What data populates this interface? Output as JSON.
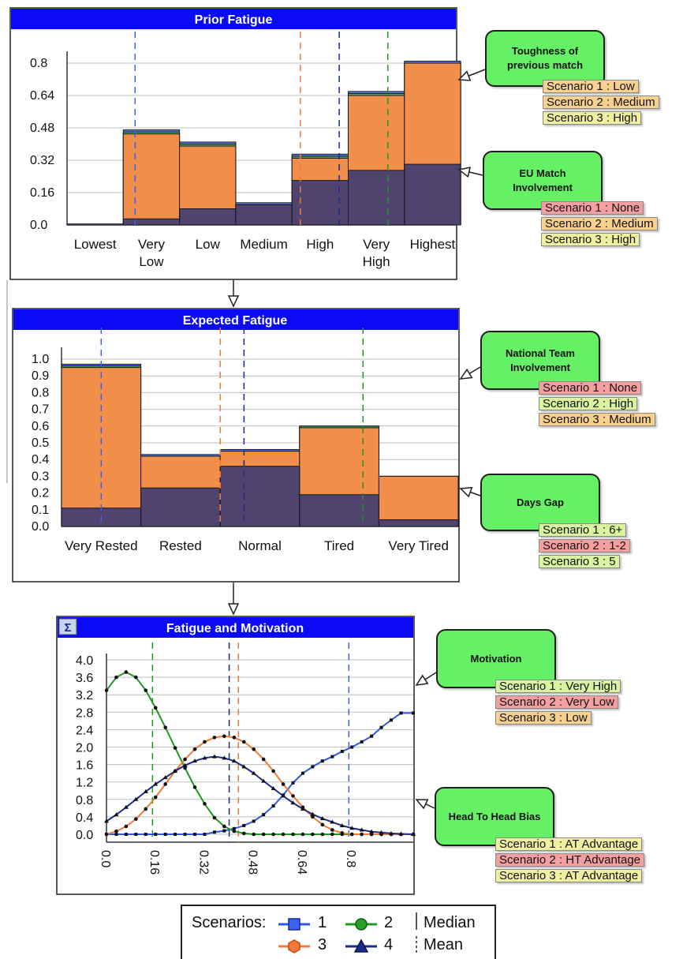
{
  "prior_fatigue": {
    "title": "Prior Fatigue",
    "chart_data": {
      "type": "bar",
      "title": "Prior Fatigue",
      "categories": [
        "Lowest",
        "Very Low",
        "Low",
        "Medium",
        "High",
        "Very High",
        "Highest"
      ],
      "tick_labels": [
        "0.0",
        "0.16",
        "0.32",
        "0.48",
        "0.64",
        "0.8"
      ],
      "ylim": [
        0,
        0.8
      ],
      "series": [
        {
          "values": [
            0.005,
            0.47,
            0.41,
            0.11,
            0.35,
            0.66,
            0.81
          ],
          "color": "#5b7bf0"
        },
        {
          "values": [
            0.0,
            0.46,
            0.4,
            0.1,
            0.34,
            0.65,
            0.8
          ],
          "color": "#45a845"
        },
        {
          "values": [
            0.0,
            0.45,
            0.39,
            0.1,
            0.33,
            0.64,
            0.8
          ],
          "color": "#ff8c4a"
        },
        {
          "values": [
            0.0,
            0.03,
            0.08,
            0.1,
            0.22,
            0.27,
            0.3
          ],
          "color": "#232e78"
        }
      ],
      "mean_lines": [
        0.175,
        0.6,
        0.7,
        0.825
      ]
    }
  },
  "expected_fatigue": {
    "title": "Expected Fatigue",
    "chart_data": {
      "type": "bar",
      "title": "Expected Fatigue",
      "categories": [
        "Very Rested",
        "Rested",
        "Normal",
        "Tired",
        "Very Tired"
      ],
      "tick_labels": [
        "0.0",
        "0.1",
        "0.2",
        "0.3",
        "0.4",
        "0.5",
        "0.6",
        "0.7",
        "0.8",
        "0.9",
        "1.0"
      ],
      "ylim": [
        0,
        1.0
      ],
      "series": [
        {
          "values": [
            0.97,
            0.43,
            0.46,
            0.6,
            0.3
          ],
          "color": "#5b7bf0"
        },
        {
          "values": [
            0.96,
            0.42,
            0.45,
            0.6,
            0.3
          ],
          "color": "#45a845"
        },
        {
          "values": [
            0.95,
            0.42,
            0.45,
            0.59,
            0.3
          ],
          "color": "#ff8c4a"
        },
        {
          "values": [
            0.11,
            0.23,
            0.36,
            0.19,
            0.04
          ],
          "color": "#232e78"
        }
      ],
      "mean_lines": [
        0.1,
        0.4,
        0.46,
        0.76
      ]
    }
  },
  "fatigue_motivation": {
    "title": "Fatigue and Motivation",
    "sigma_label": "Σ",
    "chart_data": {
      "type": "line",
      "title": "Fatigue and Motivation",
      "x": [
        0.0,
        0.032,
        0.064,
        0.096,
        0.128,
        0.16,
        0.192,
        0.224,
        0.256,
        0.288,
        0.32,
        0.352,
        0.384,
        0.416,
        0.448,
        0.48,
        0.512,
        0.544,
        0.576,
        0.608,
        0.64,
        0.672,
        0.704,
        0.736,
        0.768,
        0.8,
        0.832,
        0.864,
        0.896,
        0.928,
        0.96,
        1.0
      ],
      "series": [
        {
          "name": "1",
          "color": "#2f57e8",
          "marker": "square",
          "values": [
            0.0,
            0.0,
            0.0,
            0.0,
            0.0,
            0.0,
            0.0,
            0.0,
            0.0,
            0.0,
            0.0,
            0.05,
            0.08,
            0.13,
            0.2,
            0.3,
            0.45,
            0.65,
            0.9,
            1.18,
            1.4,
            1.55,
            1.68,
            1.78,
            1.9,
            2.0,
            2.12,
            2.25,
            2.45,
            2.62,
            2.78,
            2.78
          ]
        },
        {
          "name": "2",
          "color": "#1f9a1f",
          "marker": "circle",
          "values": [
            3.3,
            3.6,
            3.72,
            3.6,
            3.3,
            2.9,
            2.45,
            1.98,
            1.52,
            1.08,
            0.7,
            0.38,
            0.18,
            0.07,
            0.02,
            0.0,
            0.0,
            0.0,
            0.0,
            0.0,
            0.0,
            0.0,
            0.0,
            0.0,
            0.0,
            0.0,
            0.0,
            0.0,
            0.0,
            0.0,
            0.0,
            0.0
          ]
        },
        {
          "name": "3",
          "color": "#f07a3a",
          "marker": "hexagon",
          "values": [
            0.0,
            0.07,
            0.18,
            0.35,
            0.58,
            0.85,
            1.15,
            1.45,
            1.72,
            1.95,
            2.12,
            2.22,
            2.25,
            2.22,
            2.12,
            1.95,
            1.72,
            1.45,
            1.15,
            0.88,
            0.62,
            0.4,
            0.22,
            0.1,
            0.03,
            0.0,
            0.0,
            0.0,
            0.0,
            0.0,
            0.0,
            0.0
          ]
        },
        {
          "name": "4",
          "color": "#1c2a8c",
          "marker": "triangle",
          "values": [
            0.3,
            0.45,
            0.62,
            0.8,
            0.98,
            1.15,
            1.3,
            1.45,
            1.58,
            1.68,
            1.75,
            1.78,
            1.75,
            1.68,
            1.55,
            1.4,
            1.22,
            1.05,
            0.88,
            0.72,
            0.58,
            0.46,
            0.36,
            0.28,
            0.2,
            0.14,
            0.1,
            0.06,
            0.04,
            0.02,
            0.01,
            0.0
          ]
        }
      ],
      "ytick_labels": [
        "0.0",
        "0.4",
        "0.8",
        "1.2",
        "1.6",
        "2.0",
        "2.4",
        "2.8",
        "3.2",
        "3.6",
        "4.0"
      ],
      "xtick_labels": [
        "0.0",
        "0.16",
        "0.32",
        "0.48",
        "0.64",
        "0.8"
      ],
      "ylim": [
        0,
        4.0
      ],
      "xlim": [
        0,
        1.0
      ],
      "mean_lines": [
        0.15,
        0.4,
        0.43,
        0.79
      ]
    }
  },
  "notes": {
    "toughness": {
      "label": "Toughness of previous match",
      "scenarios": [
        "Scenario 1 : Low",
        "Scenario 2 : Medium",
        "Scenario 3 : High"
      ]
    },
    "eu_match": {
      "label": "EU Match Involvement",
      "scenarios": [
        "Scenario 1 : None",
        "Scenario 2 : Medium",
        "Scenario 3 : High"
      ]
    },
    "national_team": {
      "label": "National Team Involvement",
      "scenarios": [
        "Scenario 1 : None",
        "Scenario 2 : High",
        "Scenario 3 : Medium"
      ]
    },
    "days_gap": {
      "label": "Days Gap",
      "scenarios": [
        "Scenario 1 : 6+",
        "Scenario 2 : 1-2",
        "Scenario 3 : 5"
      ]
    },
    "motivation": {
      "label": "Motivation",
      "scenarios": [
        "Scenario 1 : Very High",
        "Scenario 2 : Very Low",
        "Scenario 3 : Low"
      ]
    },
    "head_to_head": {
      "label": "Head To Head Bias",
      "scenarios": [
        "Scenario 1 : AT Advantage",
        "Scenario 2 : HT Advantage",
        "Scenario 3 : AT Advantage"
      ]
    }
  },
  "legend": {
    "title": "Scenarios:",
    "items": [
      "1",
      "2",
      "3",
      "4"
    ],
    "median_label": "Median",
    "mean_label": "Mean"
  }
}
